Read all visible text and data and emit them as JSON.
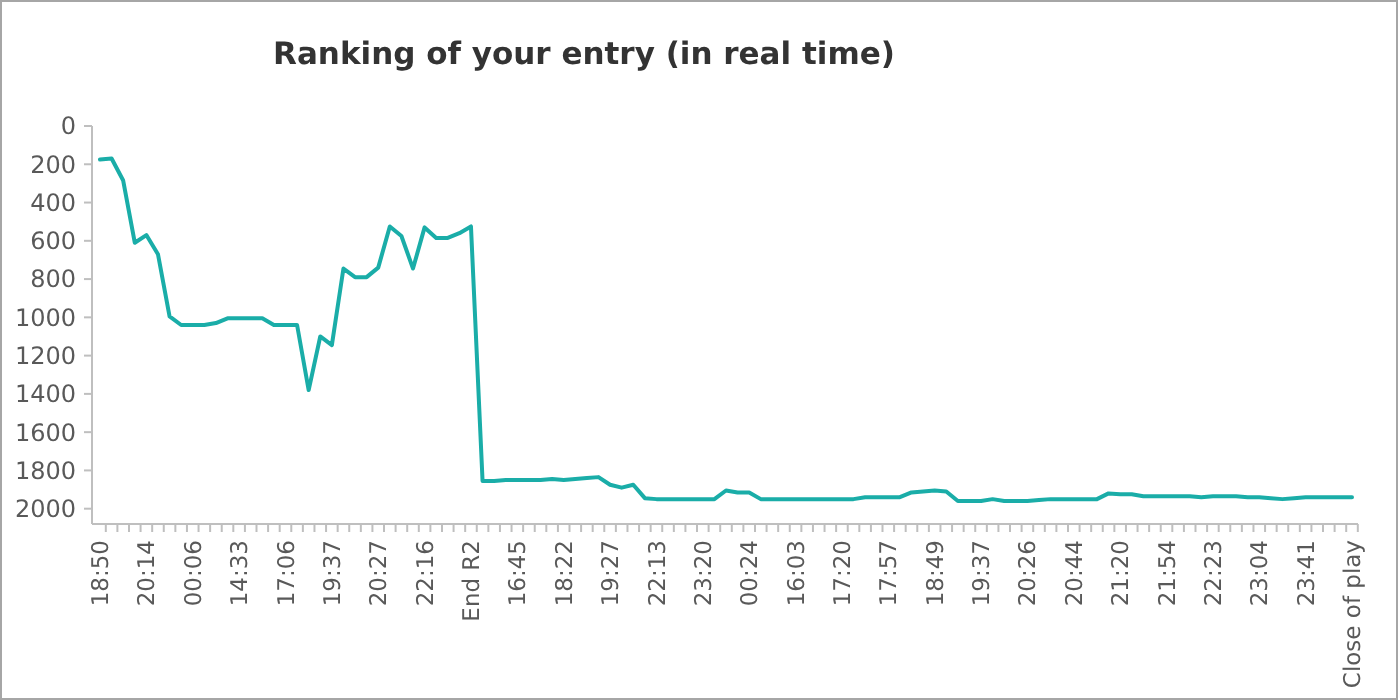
{
  "chart_data": {
    "type": "line",
    "title": "Ranking of your entry (in real time)",
    "categories": [
      "18:50",
      null,
      null,
      null,
      "20:14",
      null,
      null,
      null,
      "00:06",
      null,
      null,
      null,
      "14:33",
      null,
      null,
      null,
      "17:06",
      null,
      null,
      null,
      "19:37",
      null,
      null,
      null,
      "20:27",
      null,
      null,
      null,
      "22:16",
      null,
      null,
      null,
      "End R2",
      null,
      null,
      null,
      "16:45",
      null,
      null,
      null,
      "18:22",
      null,
      null,
      null,
      "19:27",
      null,
      null,
      null,
      "22:13",
      null,
      null,
      null,
      "23:20",
      null,
      null,
      null,
      "00:24",
      null,
      null,
      null,
      "16:03",
      null,
      null,
      null,
      "17:20",
      null,
      null,
      null,
      "17:57",
      null,
      null,
      null,
      "18:49",
      null,
      null,
      null,
      "19:37",
      null,
      null,
      null,
      "20:26",
      null,
      null,
      null,
      "20:44",
      null,
      null,
      null,
      "21:20",
      null,
      null,
      null,
      "21:54",
      null,
      null,
      null,
      "22:23",
      null,
      null,
      null,
      "23:04",
      null,
      null,
      null,
      "23:41",
      null,
      null,
      null,
      "Close of play"
    ],
    "series": [
      {
        "color": "#1aada8",
        "values": [
          175,
          170,
          285,
          610,
          570,
          670,
          995,
          1040,
          1040,
          1040,
          1030,
          1005,
          1005,
          1005,
          1005,
          1040,
          1040,
          1040,
          1380,
          1100,
          1145,
          745,
          790,
          790,
          740,
          525,
          575,
          745,
          530,
          585,
          585,
          560,
          525,
          1855,
          1855,
          1850,
          1850,
          1850,
          1850,
          1845,
          1850,
          1845,
          1840,
          1835,
          1875,
          1890,
          1875,
          1945,
          1950,
          1950,
          1950,
          1950,
          1950,
          1950,
          1905,
          1915,
          1915,
          1950,
          1950,
          1950,
          1950,
          1950,
          1950,
          1950,
          1950,
          1950,
          1940,
          1940,
          1940,
          1940,
          1915,
          1910,
          1905,
          1910,
          1960,
          1960,
          1960,
          1950,
          1960,
          1960,
          1960,
          1955,
          1950,
          1950,
          1950,
          1950,
          1950,
          1920,
          1925,
          1925,
          1935,
          1935,
          1935,
          1935,
          1935,
          1940,
          1935,
          1935,
          1935,
          1940,
          1940,
          1945,
          1950,
          1945,
          1940,
          1940,
          1940,
          1940,
          1940
        ]
      }
    ],
    "ylim": [
      2080,
      0
    ],
    "yticks": [
      0,
      200,
      400,
      600,
      800,
      1000,
      1200,
      1400,
      1600,
      1800,
      2000
    ],
    "grid": false,
    "marker": "none",
    "line_style": "solid"
  }
}
